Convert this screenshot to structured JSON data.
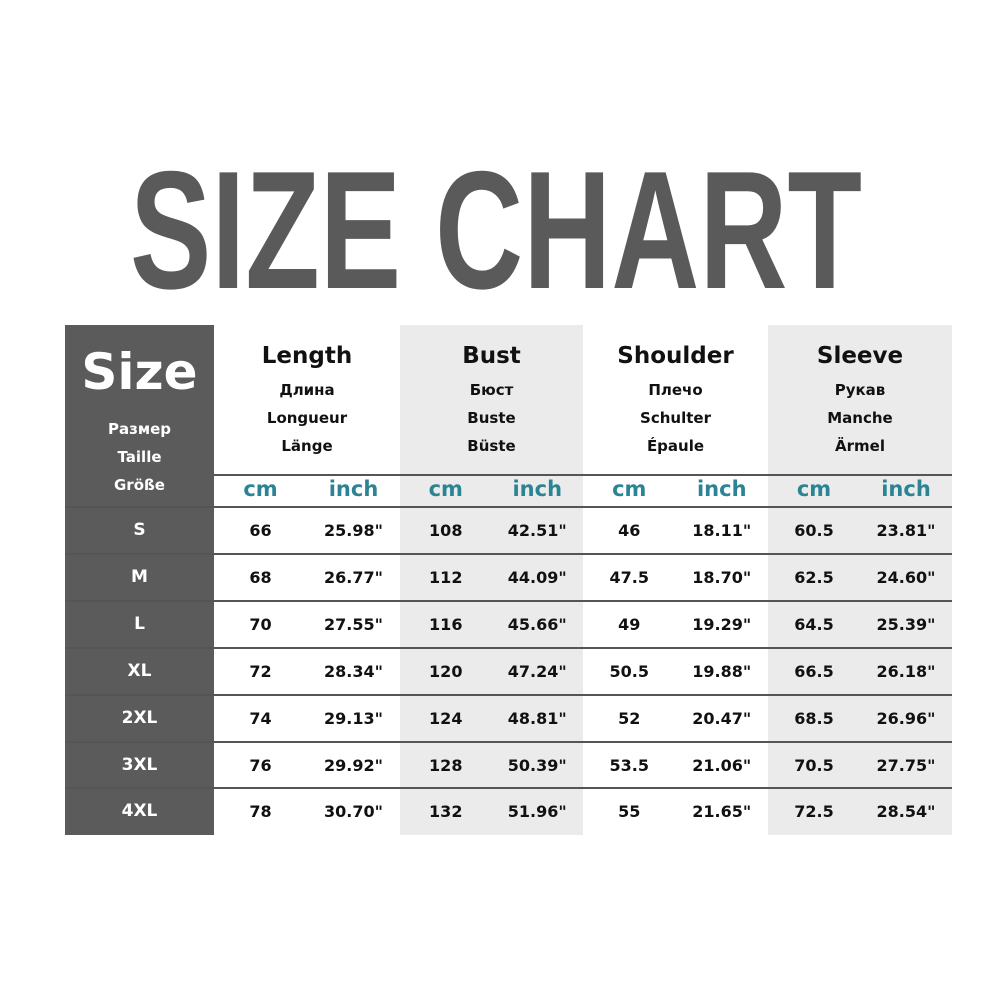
{
  "title": "SIZE CHART",
  "colors": {
    "title": "#5a5a5a",
    "size_column": "#5b5b5b",
    "unit": "#2b8494",
    "shade": "#ebebeb"
  },
  "size_header": {
    "main": "Size",
    "ru": "Размер",
    "fr": "Taille",
    "de": "Größe"
  },
  "groups": [
    {
      "title": "Length",
      "ru": "Длина",
      "fr": "Longueur",
      "de": "Länge",
      "cm": "cm",
      "inch": "inch"
    },
    {
      "title": "Bust",
      "ru": "Бюст",
      "fr": "Buste",
      "de": "Büste",
      "cm": "cm",
      "inch": "inch"
    },
    {
      "title": "Shoulder",
      "ru": "Плечо",
      "fr": "Schulter",
      "de": "Épaule",
      "cm": "cm",
      "inch": "inch"
    },
    {
      "title": "Sleeve",
      "ru": "Рукав",
      "fr": "Manche",
      "de": "Ärmel",
      "cm": "cm",
      "inch": "inch"
    }
  ],
  "rows": [
    {
      "size": "S",
      "values": [
        "66",
        "25.98\"",
        "108",
        "42.51\"",
        "46",
        "18.11\"",
        "60.5",
        "23.81\""
      ]
    },
    {
      "size": "M",
      "values": [
        "68",
        "26.77\"",
        "112",
        "44.09\"",
        "47.5",
        "18.70\"",
        "62.5",
        "24.60\""
      ]
    },
    {
      "size": "L",
      "values": [
        "70",
        "27.55\"",
        "116",
        "45.66\"",
        "49",
        "19.29\"",
        "64.5",
        "25.39\""
      ]
    },
    {
      "size": "XL",
      "values": [
        "72",
        "28.34\"",
        "120",
        "47.24\"",
        "50.5",
        "19.88\"",
        "66.5",
        "26.18\""
      ]
    },
    {
      "size": "2XL",
      "values": [
        "74",
        "29.13\"",
        "124",
        "48.81\"",
        "52",
        "20.47\"",
        "68.5",
        "26.96\""
      ]
    },
    {
      "size": "3XL",
      "values": [
        "76",
        "29.92\"",
        "128",
        "50.39\"",
        "53.5",
        "21.06\"",
        "70.5",
        "27.75\""
      ]
    },
    {
      "size": "4XL",
      "values": [
        "78",
        "30.70\"",
        "132",
        "51.96\"",
        "55",
        "21.65\"",
        "72.5",
        "28.54\""
      ]
    }
  ]
}
